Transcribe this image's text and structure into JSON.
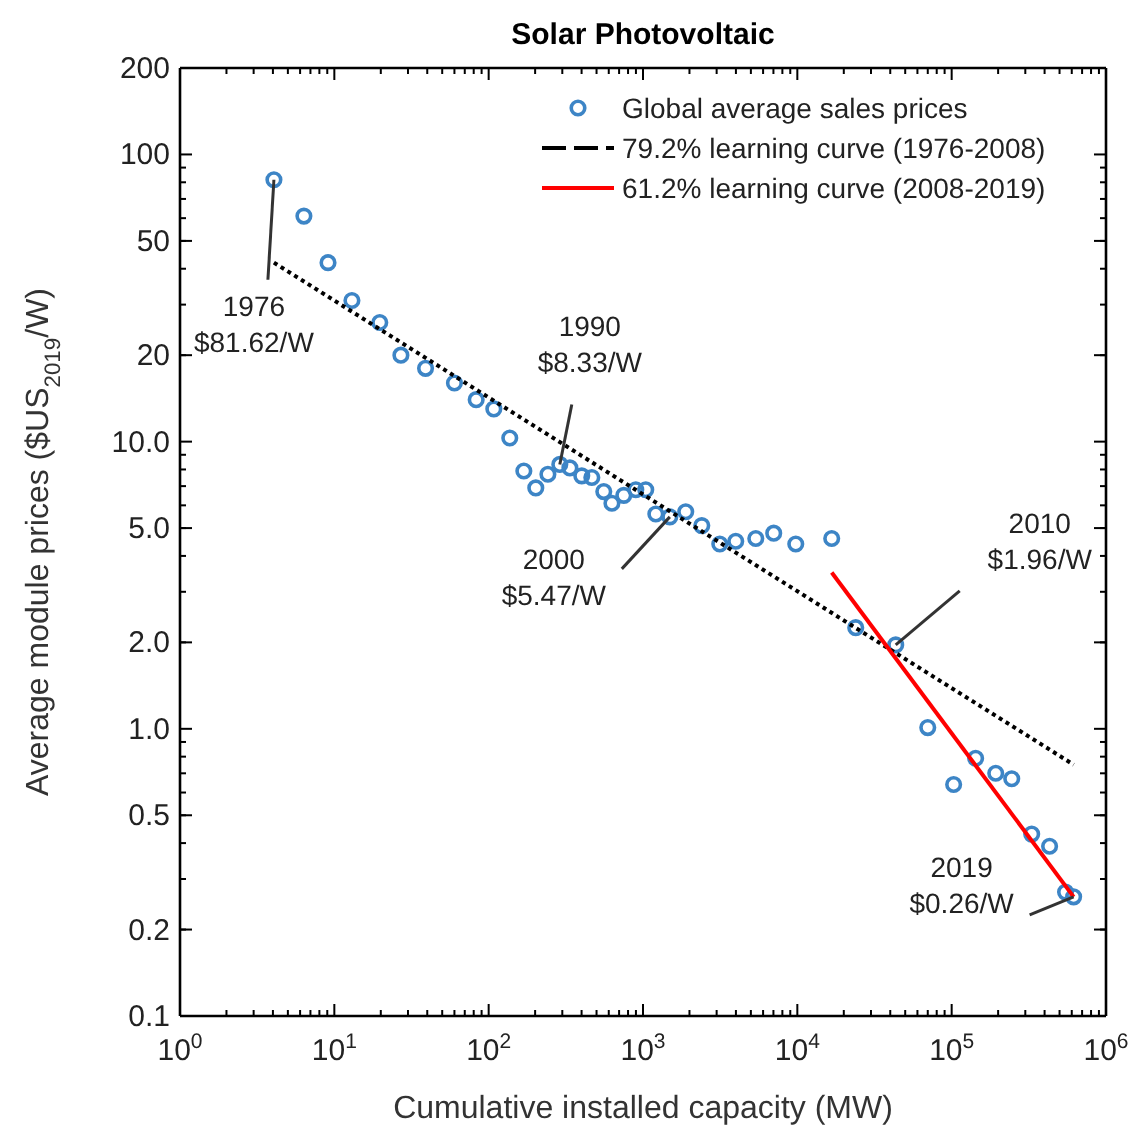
{
  "chart_data": {
    "type": "scatter",
    "title": "Solar Photovoltaic",
    "xlabel": "Cumulative installed capacity (MW)",
    "ylabel": "Average module prices ($US$_{2019}$/W)",
    "log": "xy",
    "grid": false,
    "legend": "top right",
    "marker": "circle",
    "xlim": [
      1,
      1000000
    ],
    "xticks": [
      {
        "value": 1,
        "label": "10$^{0}$"
      },
      {
        "value": 10,
        "label": "10$^{1}$"
      },
      {
        "value": 100,
        "label": "10$^{2}$"
      },
      {
        "value": 1000,
        "label": "10$^{3}$"
      },
      {
        "value": 10000,
        "label": "10$^{4}$"
      },
      {
        "value": 100000,
        "label": "10$^{5}$"
      },
      {
        "value": 1000000,
        "label": "10$^{6}$"
      }
    ],
    "ylim": [
      0.1,
      200
    ],
    "yticks": [
      0.1,
      0.2,
      0.5,
      {
        "value": 1,
        "label": "1.0"
      },
      {
        "value": 2,
        "label": "2.0"
      },
      {
        "value": 5,
        "label": "5.0"
      },
      {
        "value": 10,
        "label": "10.0"
      },
      20,
      50,
      100,
      200
    ],
    "series": [
      {
        "name": "Global average sales prices",
        "color": "#3d85c6",
        "x": [
          4.06,
          6.35,
          9.1,
          13,
          19.7,
          27,
          39,
          60,
          83,
          108,
          137,
          169,
          202,
          242,
          289,
          336,
          401,
          466,
          557,
          629,
          751,
          898,
          1042,
          1211,
          1492,
          1892,
          2404,
          3144,
          3990,
          5380,
          7030,
          9770,
          16700,
          23900,
          43400,
          70000,
          103000,
          143000,
          193000,
          245000,
          330000,
          431000,
          547000,
          617000
        ],
        "values": [
          81.62,
          61,
          42,
          31,
          26,
          20,
          18,
          16,
          14,
          13,
          10.3,
          7.9,
          6.9,
          7.7,
          8.33,
          8.1,
          7.6,
          7.5,
          6.7,
          6.1,
          6.5,
          6.8,
          6.8,
          5.6,
          5.47,
          5.7,
          5.1,
          4.4,
          4.5,
          4.6,
          4.8,
          4.4,
          4.6,
          2.25,
          1.96,
          1.01,
          0.64,
          0.79,
          0.7,
          0.67,
          0.43,
          0.39,
          0.27,
          0.26
        ]
      },
      {
        "name": "79.2% learning curve (1976-2008)",
        "type": "line",
        "marker": "none",
        "line_style": "dotted",
        "color": "#000000",
        "x": [
          4.06,
          617000
        ],
        "values": [
          42,
          0.75
        ]
      },
      {
        "name": "61.2% learning curve (2008-2019)",
        "type": "line",
        "marker": "none",
        "line_style": "solid",
        "color": "#ff0000",
        "x": [
          16700,
          617000
        ],
        "values": [
          3.5,
          0.26
        ]
      }
    ],
    "annotations": [
      {
        "text": "1976\n$81.62/W",
        "x": 4.06,
        "y": 81.62
      },
      {
        "text": "1990\n$8.33/W",
        "x": 289,
        "y": 8.33
      },
      {
        "text": "2000\n$5.47/W",
        "x": 1492,
        "y": 5.47
      },
      {
        "text": "2010\n$1.96/W",
        "x": 43400,
        "y": 1.96
      },
      {
        "text": "2019\n$0.26/W",
        "x": 617000,
        "y": 0.26
      }
    ]
  }
}
